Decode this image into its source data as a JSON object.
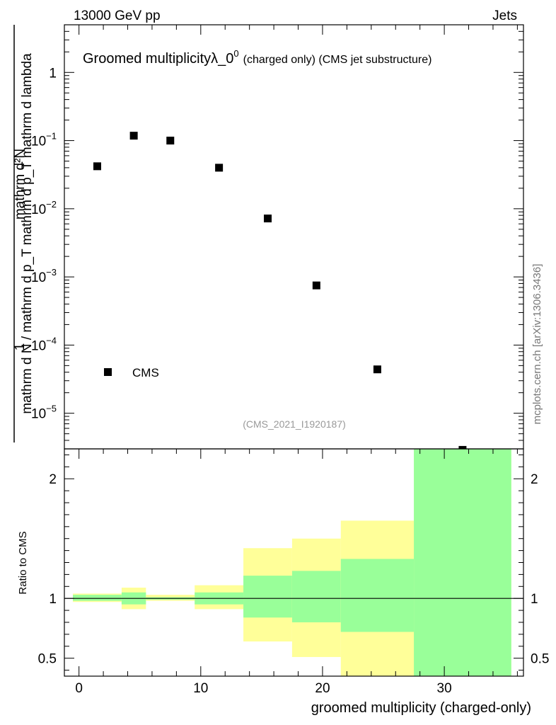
{
  "header": {
    "left": "13000 GeV pp",
    "right": "Jets"
  },
  "side_label": "mcplots.cern.ch [arXiv:1306.3436]",
  "chart_data": [
    {
      "type": "scatter",
      "title": "Groomed multiplicity",
      "title_symbol": "λ_0",
      "title_superscript": "0",
      "title_suffix": "(charged only) (CMS jet substructure)",
      "ylabel_numerator": "mathrm d²N",
      "ylabel_denominator": "mathrm d N / mathrm d p_T mathrm d p_T mathrm d lambda",
      "ylabel_prefix": "1",
      "yscale": "log",
      "ylim": [
        3e-06,
        5
      ],
      "xlim": [
        -1.2,
        36.5
      ],
      "ytick_labels": [
        {
          "value": 1,
          "base": "1",
          "exp": ""
        },
        {
          "value": 0.1,
          "base": "10",
          "exp": "−1"
        },
        {
          "value": 0.01,
          "base": "10",
          "exp": "−2"
        },
        {
          "value": 0.001,
          "base": "10",
          "exp": "−3"
        },
        {
          "value": 0.0001,
          "base": "10",
          "exp": "−4"
        },
        {
          "value": 1e-05,
          "base": "10",
          "exp": "−5"
        }
      ],
      "series": [
        {
          "name": "CMS",
          "marker": "square",
          "color": "#000000",
          "points": [
            {
              "x": 1.5,
              "y": 0.042
            },
            {
              "x": 4.5,
              "y": 0.118
            },
            {
              "x": 7.5,
              "y": 0.1
            },
            {
              "x": 11.5,
              "y": 0.04
            },
            {
              "x": 15.5,
              "y": 0.0072
            },
            {
              "x": 19.5,
              "y": 0.00075
            },
            {
              "x": 24.5,
              "y": 4.4e-05
            },
            {
              "x": 31.5,
              "y": 2.9e-06
            }
          ]
        }
      ],
      "legend": {
        "position": "bottom-left",
        "label": "CMS"
      },
      "annotation": "(CMS_2021_I1920187)"
    },
    {
      "type": "area",
      "ylabel": "Ratio to CMS",
      "xlabel": "groomed multiplicity (charged-only)",
      "ylim": [
        0.35,
        2.25
      ],
      "xlim": [
        -1.2,
        36.5
      ],
      "xticks": [
        0,
        10,
        20,
        30
      ],
      "xtick_labels": [
        "0",
        "10",
        "20",
        "30"
      ],
      "yticks": [
        0.5,
        1,
        2
      ],
      "ytick_labels": [
        "0.5",
        "1",
        "2"
      ],
      "reference_line": 1,
      "bands": [
        {
          "x0": -0.5,
          "x1": 3.5,
          "green_lo": 0.98,
          "green_hi": 1.03,
          "yellow_lo": 0.97,
          "yellow_hi": 1.04
        },
        {
          "x0": 3.5,
          "x1": 5.5,
          "green_lo": 0.95,
          "green_hi": 1.05,
          "yellow_lo": 0.91,
          "yellow_hi": 1.09
        },
        {
          "x0": 5.5,
          "x1": 9.5,
          "green_lo": 0.99,
          "green_hi": 1.01,
          "yellow_lo": 0.98,
          "yellow_hi": 1.03
        },
        {
          "x0": 9.5,
          "x1": 13.5,
          "green_lo": 0.95,
          "green_hi": 1.05,
          "yellow_lo": 0.91,
          "yellow_hi": 1.11
        },
        {
          "x0": 13.5,
          "x1": 17.5,
          "green_lo": 0.84,
          "green_hi": 1.19,
          "yellow_lo": 0.64,
          "yellow_hi": 1.42
        },
        {
          "x0": 17.5,
          "x1": 21.5,
          "green_lo": 0.8,
          "green_hi": 1.23,
          "yellow_lo": 0.51,
          "yellow_hi": 1.5
        },
        {
          "x0": 21.5,
          "x1": 27.5,
          "green_lo": 0.72,
          "green_hi": 1.33,
          "yellow_lo": 0.35,
          "yellow_hi": 1.65
        },
        {
          "x0": 27.5,
          "x1": 35.5,
          "green_lo": 0.35,
          "green_hi": 2.25,
          "yellow_lo": 0.35,
          "yellow_hi": 2.25
        }
      ],
      "colors": {
        "green": "#99ff99",
        "yellow": "#ffff99"
      }
    }
  ]
}
